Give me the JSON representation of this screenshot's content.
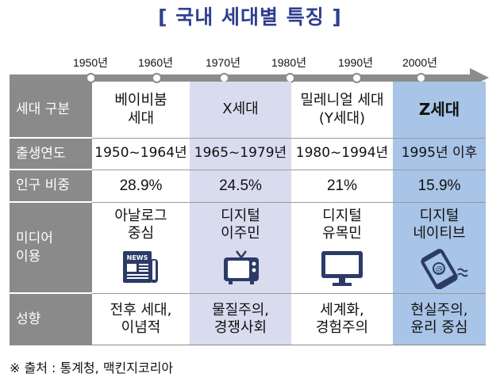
{
  "title": "[ 국내 세대별 특징 ]",
  "timeline": [
    "1950년",
    "1960년",
    "1970년",
    "1980년",
    "1990년",
    "2000년"
  ],
  "row_headers": {
    "generation": "세대 구분",
    "birth_year": "출생연도",
    "population": "인구 비중",
    "media": "미디어\n이용",
    "tendency": "성향"
  },
  "columns": [
    {
      "generation": "베이비붐\n세대",
      "birth_year": "1950~1964년",
      "population": "28.9%",
      "media": "아날로그\n중심",
      "media_icon": "newspaper-icon",
      "tendency": "전후 세대,\n이념적"
    },
    {
      "generation": "X세대",
      "birth_year": "1965~1979년",
      "population": "24.5%",
      "media": "디지털\n이주민",
      "media_icon": "tv-icon",
      "tendency": "물질주의,\n경쟁사회"
    },
    {
      "generation": "밀레니얼 세대\n(Y세대)",
      "birth_year": "1980~1994년",
      "population": "21%",
      "media": "디지털\n유목민",
      "media_icon": "monitor-icon",
      "tendency": "세계화,\n경험주의"
    },
    {
      "generation": "Z세대",
      "birth_year": "1995년 이후",
      "population": "15.9%",
      "media": "디지털\n네이티브",
      "media_icon": "smartphone-icon",
      "tendency": "현실주의,\n윤리 중심"
    }
  ],
  "source": "※ 출처 : 통계청, 맥킨지코리아",
  "colors": {
    "header_gray": "#8a8a8a",
    "x_col_bg": "#d9dcef",
    "z_col_bg": "#a8c4e6",
    "title_blue": "#2f3f8f",
    "icon_navy": "#2c3a66"
  }
}
